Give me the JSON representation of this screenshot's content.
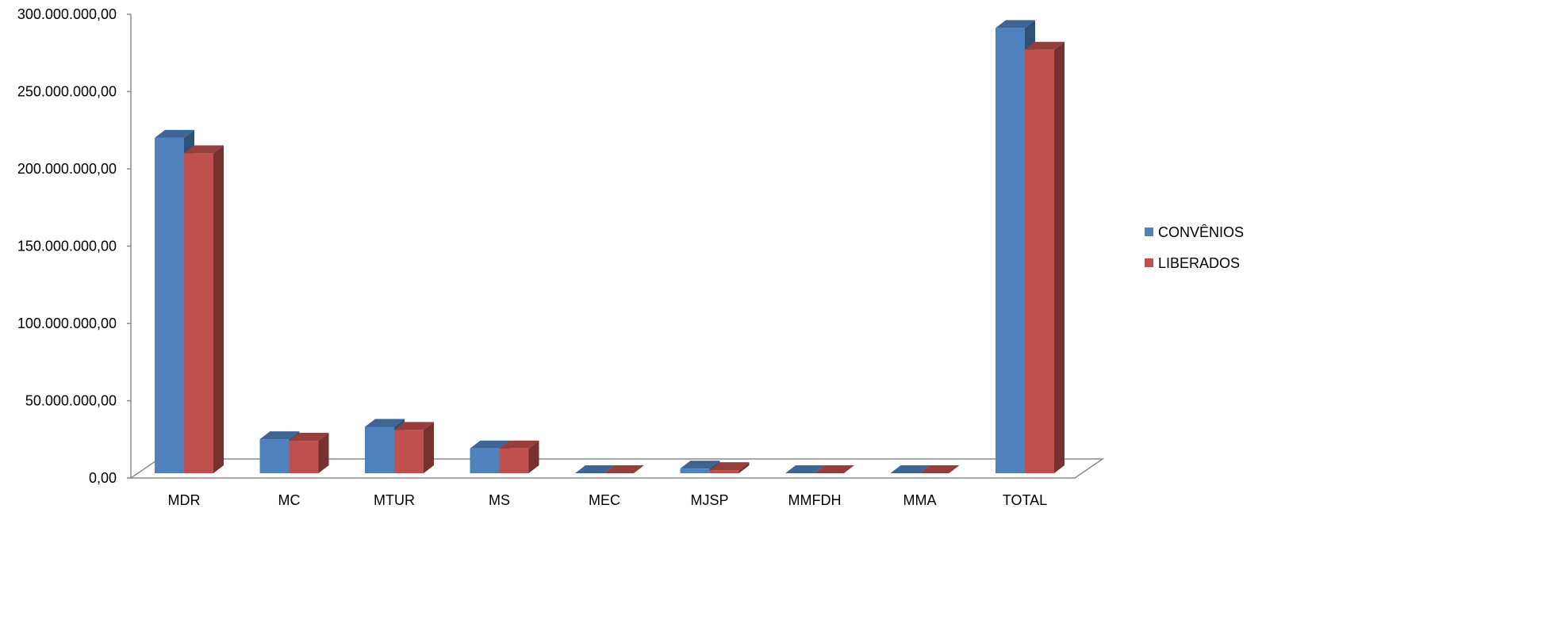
{
  "chart_data": {
    "type": "bar",
    "style": "3d-clustered-column",
    "categories": [
      "MDR",
      "MC",
      "MTUR",
      "MS",
      "MEC",
      "MJSP",
      "MMFDH",
      "MMA",
      "TOTAL"
    ],
    "series": [
      {
        "name": "CONVÊNIOS",
        "color": "#4F81BD",
        "values": [
          217000000,
          22000000,
          30000000,
          16000000,
          0,
          3000000,
          0,
          0,
          288000000
        ]
      },
      {
        "name": "LIBERADOS",
        "color": "#C0504D",
        "values": [
          207000000,
          21000000,
          28000000,
          16000000,
          0,
          2000000,
          0,
          0,
          274000000
        ]
      }
    ],
    "y_ticks": [
      {
        "value": 0,
        "label": "0,00"
      },
      {
        "value": 50000000,
        "label": "50.000.000,00"
      },
      {
        "value": 100000000,
        "label": "100.000.000,00"
      },
      {
        "value": 150000000,
        "label": "150.000.000,00"
      },
      {
        "value": 200000000,
        "label": "200.000.000,00"
      },
      {
        "value": 250000000,
        "label": "250.000.000,00"
      },
      {
        "value": 300000000,
        "label": "300.000.000,00"
      }
    ],
    "ylim": [
      0,
      300000000
    ],
    "grid": false,
    "legend": "right",
    "title": "",
    "xlabel": "",
    "ylabel": ""
  }
}
